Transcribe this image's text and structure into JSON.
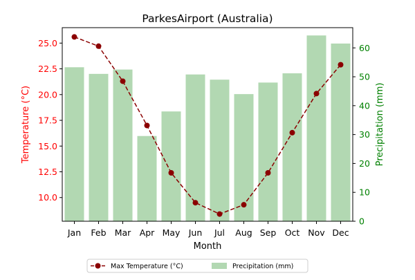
{
  "chart_data": {
    "type": "bar+line",
    "title": "ParkesAirport (Australia)",
    "xlabel": "Month",
    "categories": [
      "Jan",
      "Feb",
      "Mar",
      "Apr",
      "May",
      "Jun",
      "Jul",
      "Aug",
      "Sep",
      "Oct",
      "Nov",
      "Dec"
    ],
    "y_left": {
      "label": "Temperature (°C)",
      "range": [
        7.7,
        26.5
      ],
      "ticks": [
        10.0,
        12.5,
        15.0,
        17.5,
        20.0,
        22.5,
        25.0
      ],
      "tick_labels": [
        "10.0",
        "12.5",
        "15.0",
        "17.5",
        "20.0",
        "22.5",
        "25.0"
      ],
      "color": "#ff0000"
    },
    "y_right": {
      "label": "Precipitation (mm)",
      "range": [
        0,
        67
      ],
      "ticks": [
        0,
        10,
        20,
        30,
        40,
        50,
        60
      ],
      "tick_labels": [
        "0",
        "10",
        "20",
        "30",
        "40",
        "50",
        "60"
      ],
      "color": "#008000"
    },
    "series": [
      {
        "name": "Max Temperature (°C)",
        "type": "line",
        "axis": "left",
        "color": "#8b0000",
        "style": "dashed",
        "marker": "circle",
        "values": [
          25.6,
          24.7,
          21.3,
          17.0,
          12.4,
          9.5,
          8.4,
          9.3,
          12.4,
          16.3,
          20.1,
          22.9
        ]
      },
      {
        "name": "Precipitation (mm)",
        "type": "bar",
        "axis": "right",
        "color": "#b2d8b2",
        "values": [
          53.3,
          51.0,
          52.5,
          29.5,
          38.0,
          50.8,
          49.0,
          44.0,
          48.0,
          51.2,
          64.3,
          61.5
        ]
      }
    ],
    "legend": {
      "placement": "bottom-center",
      "entries": [
        "Max Temperature (°C)",
        "Precipitation (mm)"
      ]
    },
    "grid": false
  }
}
